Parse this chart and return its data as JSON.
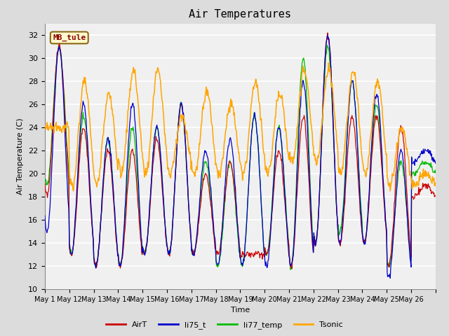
{
  "title": "Air Temperatures",
  "xlabel": "Time",
  "ylabel": "Air Temperature (C)",
  "ylim": [
    10,
    33
  ],
  "yticks": [
    10,
    12,
    14,
    16,
    18,
    20,
    22,
    24,
    26,
    28,
    30,
    32
  ],
  "annotation": "MB_tule",
  "annotation_color": "#8B0000",
  "annotation_bg": "#FFFACD",
  "annotation_border": "#8B6914",
  "line_colors": {
    "AirT": "#CC0000",
    "li75_t": "#0000CC",
    "li77_temp": "#00BB00",
    "Tsonic": "#FFA500"
  },
  "xtick_labels": [
    "May 1",
    "May 12",
    "May 13",
    "May 14",
    "May 15",
    "May 16",
    "May 17",
    "May 18",
    "May 19",
    "May 20",
    "May 21",
    "May 22",
    "May 23",
    "May 24",
    "May 25",
    "May 26"
  ],
  "bg_color": "#DCDCDC",
  "plot_bg": "#F0F0F0",
  "grid_color": "white",
  "figsize": [
    6.4,
    4.8
  ],
  "dpi": 100
}
